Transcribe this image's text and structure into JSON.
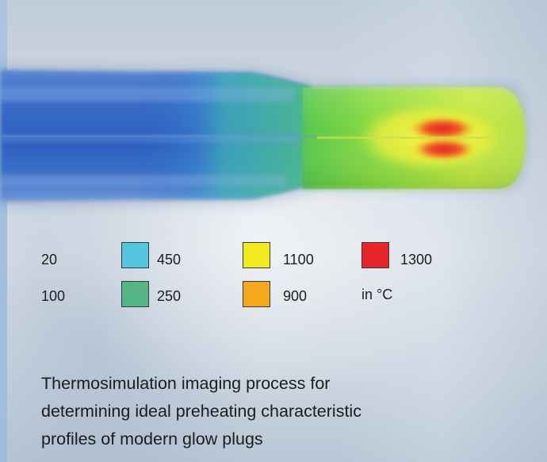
{
  "legend": {
    "unit": "in °C",
    "entries": [
      {
        "value": "20",
        "color": null
      },
      {
        "value": "450",
        "color": "#55c6de"
      },
      {
        "value": "1100",
        "color": "#f2ea1e"
      },
      {
        "value": "1300",
        "color": "#e8262a"
      },
      {
        "value": "100",
        "color": null
      },
      {
        "value": "250",
        "color": "#56b585"
      },
      {
        "value": "900",
        "color": "#f4a81c"
      }
    ]
  },
  "caption": {
    "lines": [
      "Thermosimulation imaging process for",
      "determining ideal preheating characteristic",
      "profiles of modern glow plugs"
    ]
  },
  "image": {
    "subject": "glow-plug-thermal-simulation",
    "colors": {
      "shaft": "#2f66c4",
      "shaft_highlight": "#6f9de0",
      "tip_base": "#7ed23a",
      "tip_warm": "#eef04a",
      "tip_hot": "#e6252b"
    }
  }
}
